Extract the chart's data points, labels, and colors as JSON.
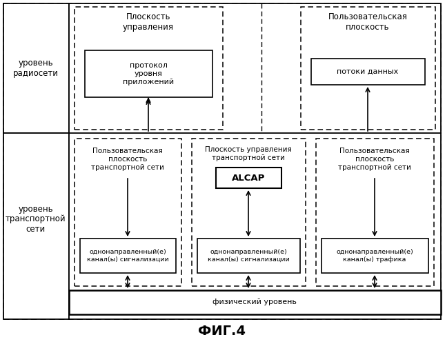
{
  "title": "ФИГ.4",
  "bg_color": "#ffffff",
  "left_label_radio": "уровень\nрадиосети",
  "left_label_transport": "уровень\nтранспортной\nсети",
  "top_control_plane": "Плоскость\nуправления",
  "top_user_plane": "Пользовательская\nплоскость",
  "box_app_protocol": "протокол\nуровня\nприложений",
  "box_data_flows": "потоки данных",
  "box_user_plane_tn1": "Пользовательская\nплоскость\nтранспортной сети",
  "box_control_plane_tn": "Плоскость управления\nтранспортной сети",
  "box_user_plane_tn2": "Пользовательская\nплоскость\nтранспортной сети",
  "box_alcap": "ALCAP",
  "box_sig1": "однонаправленный(е)\nканал(ы) сигнализации",
  "box_sig2": "однонаправленный(е)\nканал(ы) сигнализации",
  "box_traffic": "однонаправленный(е)\nканал(ы) трафика",
  "box_physical": "физический уровень",
  "font_size_main": 8.0,
  "font_size_label": 7.5,
  "font_size_small": 6.8,
  "font_size_alcap": 9.5,
  "font_size_title": 14,
  "font_size_side": 8.5
}
